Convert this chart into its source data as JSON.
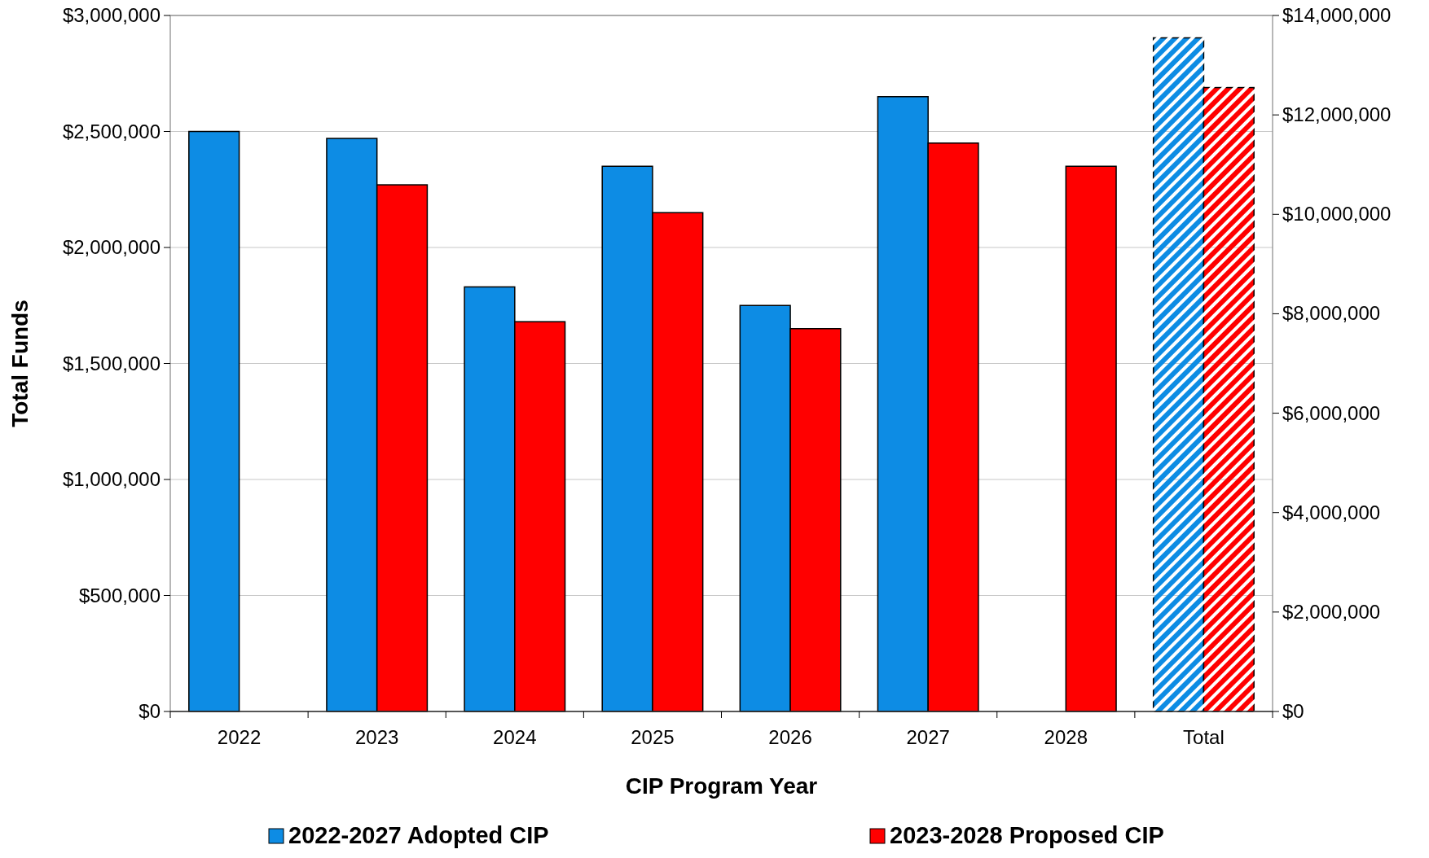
{
  "chart_data": {
    "type": "bar",
    "xlabel": "CIP Program Year",
    "ylabel": "Total Funds",
    "categories": [
      "2022",
      "2023",
      "2024",
      "2025",
      "2026",
      "2027",
      "2028",
      "Total"
    ],
    "series": [
      {
        "name": "2022-2027 Adopted CIP",
        "color": "#0d8ce4",
        "values": [
          2500000,
          2470000,
          1830000,
          2350000,
          1750000,
          2650000,
          null,
          null
        ]
      },
      {
        "name": "2023-2028 Proposed CIP",
        "color": "#ff0000",
        "values": [
          null,
          2270000,
          1680000,
          2150000,
          1650000,
          2450000,
          2350000,
          null
        ]
      },
      {
        "color": "#0d8ce4",
        "axis": "y2",
        "values": [
          null,
          null,
          null,
          null,
          null,
          null,
          null,
          13550000
        ]
      },
      {
        "color": "#ff0000",
        "axis": "y2",
        "values": [
          null,
          null,
          null,
          null,
          null,
          null,
          null,
          12550000
        ]
      }
    ],
    "ylim": [
      0,
      3000000
    ],
    "yticks": [
      {
        "value": 0,
        "label": "$0"
      },
      {
        "value": 500000,
        "label": "$500,000"
      },
      {
        "value": 1000000,
        "label": "$1,000,000"
      },
      {
        "value": 1500000,
        "label": "$1,500,000"
      },
      {
        "value": 2000000,
        "label": "$2,000,000"
      },
      {
        "value": 2500000,
        "label": "$2,500,000"
      },
      {
        "value": 3000000,
        "label": "$3,000,000"
      }
    ],
    "y2lim": [
      0,
      14000000
    ],
    "y2ticks": [
      {
        "value": 0,
        "label": "$0"
      },
      {
        "value": 2000000,
        "label": "$2,000,000"
      },
      {
        "value": 4000000,
        "label": "$4,000,000"
      },
      {
        "value": 6000000,
        "label": "$6,000,000"
      },
      {
        "value": 8000000,
        "label": "$8,000,000"
      },
      {
        "value": 10000000,
        "label": "$10,000,000"
      },
      {
        "value": 12000000,
        "label": "$12,000,000"
      },
      {
        "value": 14000000,
        "label": "$14,000,000"
      }
    ],
    "grid": "y",
    "legend": "bottom"
  }
}
